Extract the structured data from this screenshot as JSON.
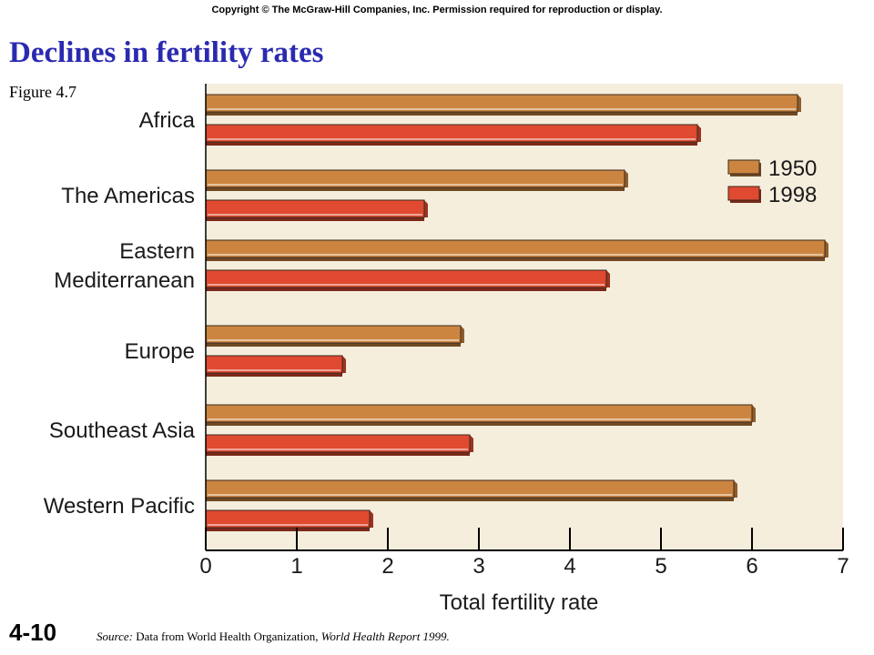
{
  "header": {
    "copyright": "Copyright © The McGraw-Hill Companies, Inc. Permission required for reproduction or display.",
    "title": "Declines in fertility rates",
    "figure": "Figure 4.7"
  },
  "footer": {
    "slide_number": "4-10",
    "source_prefix": "Source:",
    "source_middle": "Data from World Health Organization,",
    "source_italic": "World Health Report 1999."
  },
  "colors": {
    "bar_1950": "#cc8540",
    "bar_1998": "#e04a30",
    "plot_background": "#f6eedd",
    "title": "#2a2ab0"
  },
  "chart_data": {
    "type": "bar",
    "orientation": "horizontal",
    "categories": [
      "Africa",
      "The Americas",
      "Eastern Mediterranean",
      "Europe",
      "Southeast Asia",
      "Western Pacific"
    ],
    "category_lines": [
      [
        "Africa"
      ],
      [
        "The Americas"
      ],
      [
        "Eastern",
        "Mediterranean"
      ],
      [
        "Europe"
      ],
      [
        "Southeast Asia"
      ],
      [
        "Western Pacific"
      ]
    ],
    "series": [
      {
        "name": "1950",
        "values": [
          6.5,
          4.6,
          6.8,
          2.8,
          6.0,
          5.8
        ]
      },
      {
        "name": "1998",
        "values": [
          5.4,
          2.4,
          4.4,
          1.5,
          2.9,
          1.8
        ]
      }
    ],
    "xlabel": "Total fertility rate",
    "xlim": [
      0,
      7
    ],
    "xticks": [
      "0",
      "1",
      "2",
      "3",
      "4",
      "5",
      "6",
      "7"
    ],
    "legend_position": "top-right",
    "grid": false
  }
}
